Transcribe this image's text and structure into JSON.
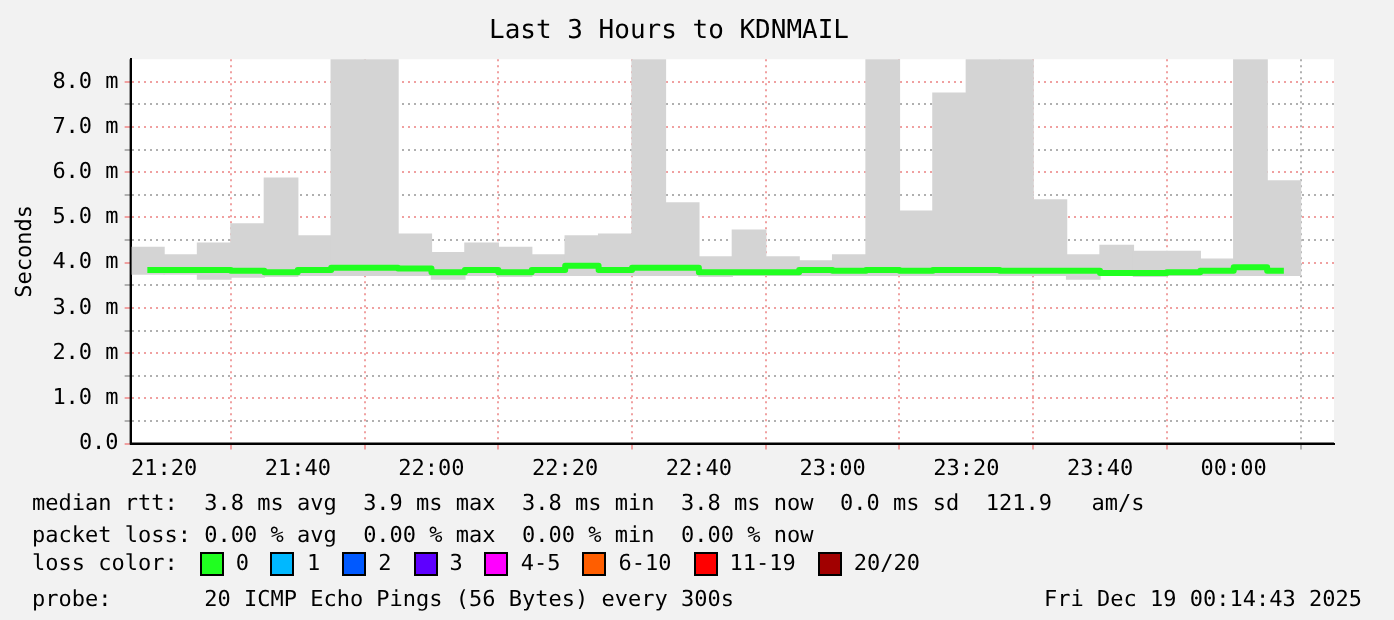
{
  "chart_data": {
    "type": "bar",
    "title": "Last 3 Hours to KDNMAIL",
    "ylabel": "Seconds",
    "legend_title": "loss color:",
    "legend": "bottom",
    "grid": true,
    "marker": "none",
    "x": [
      21.2917,
      21.375,
      21.4583,
      21.5417,
      21.625,
      21.7083,
      21.7917,
      21.875,
      21.9583,
      22.0417,
      22.125,
      22.2083,
      22.2917,
      22.375,
      22.4583,
      22.5417,
      22.625,
      22.7083,
      22.7917,
      22.875,
      22.9583,
      23.0417,
      23.125,
      23.2083,
      23.2917,
      23.375,
      23.4583,
      23.5417,
      23.625,
      23.7083,
      23.7917,
      23.875,
      23.9583,
      24.0417,
      24.125
    ],
    "xlim": [
      21.25,
      24.25
    ],
    "xticks": [
      {
        "value": 21.3333,
        "label": "21:20"
      },
      {
        "value": 21.6667,
        "label": "21:40"
      },
      {
        "value": 22,
        "label": "22:00"
      },
      {
        "value": 22.3333,
        "label": "22:20"
      },
      {
        "value": 22.6667,
        "label": "22:40"
      },
      {
        "value": 23,
        "label": "23:00"
      },
      {
        "value": 23.3333,
        "label": "23:20"
      },
      {
        "value": 23.6667,
        "label": "23:40"
      },
      {
        "value": 24,
        "label": "00:00"
      }
    ],
    "ylim": [
      0,
      8.5
    ],
    "yticks": [
      {
        "value": 0,
        "label": "0.0"
      },
      {
        "value": 0.5,
        "label": null
      },
      {
        "value": 1,
        "label": "1.0 m"
      },
      {
        "value": 1.5,
        "label": null
      },
      {
        "value": 2,
        "label": "2.0 m"
      },
      {
        "value": 2.5,
        "label": null
      },
      {
        "value": 3,
        "label": "3.0 m"
      },
      {
        "value": 3.5,
        "label": null
      },
      {
        "value": 4,
        "label": "4.0 m"
      },
      {
        "value": 4.5,
        "label": null
      },
      {
        "value": 5,
        "label": "5.0 m"
      },
      {
        "value": 5.5,
        "label": null
      },
      {
        "value": 6,
        "label": "6.0 m"
      },
      {
        "value": 6.5,
        "label": null
      },
      {
        "value": 7,
        "label": "7.0 m"
      },
      {
        "value": 7.5,
        "label": null
      },
      {
        "value": 8,
        "label": "8.0 m"
      }
    ],
    "series": [
      {
        "color": "#d4d4d4",
        "base": [
          3.75,
          3.75,
          3.64,
          3.68,
          3.7,
          3.72,
          3.72,
          3.72,
          3.72,
          3.64,
          3.72,
          3.7,
          3.72,
          3.72,
          3.72,
          3.72,
          3.72,
          3.7,
          3.72,
          3.72,
          3.72,
          3.72,
          3.72,
          3.72,
          3.72,
          3.72,
          3.72,
          3.72,
          3.64,
          3.72,
          3.7,
          3.72,
          3.72,
          3.72,
          3.72
        ],
        "values": [
          0.59,
          0.42,
          0.79,
          1.18,
          2.17,
          0.87,
          4.77,
          4.77,
          0.91,
          0.58,
          0.71,
          0.64,
          0.45,
          0.87,
          0.91,
          4.77,
          1.6,
          0.43,
          1.0,
          0.41,
          0.32,
          0.45,
          4.77,
          1.42,
          4.03,
          4.77,
          4.77,
          1.67,
          0.53,
          0.66,
          0.55,
          0.53,
          0.36,
          4.77,
          2.09
        ]
      },
      {
        "type": "step",
        "name": "0",
        "color": "#20ff20",
        "values": [
          3.84,
          3.84,
          3.84,
          3.82,
          3.79,
          3.84,
          3.89,
          3.89,
          3.87,
          3.79,
          3.84,
          3.79,
          3.84,
          3.93,
          3.84,
          3.89,
          3.89,
          3.79,
          3.79,
          3.79,
          3.84,
          3.82,
          3.84,
          3.82,
          3.84,
          3.84,
          3.82,
          3.82,
          3.82,
          3.77,
          3.77,
          3.79,
          3.82,
          3.9,
          3.82
        ]
      },
      {
        "type": "step",
        "name": "1",
        "color": "#00b8ff",
        "values": [
          null,
          null,
          null,
          null,
          null,
          null,
          null,
          null,
          null,
          null,
          null,
          null,
          null,
          null,
          null,
          null,
          null,
          null,
          null,
          null,
          null,
          null,
          null,
          null,
          null,
          null,
          null,
          null,
          null,
          null,
          null,
          null,
          null,
          null,
          null
        ]
      },
      {
        "type": "step",
        "name": "2",
        "color": "#0059ff",
        "values": [
          null,
          null,
          null,
          null,
          null,
          null,
          null,
          null,
          null,
          null,
          null,
          null,
          null,
          null,
          null,
          null,
          null,
          null,
          null,
          null,
          null,
          null,
          null,
          null,
          null,
          null,
          null,
          null,
          null,
          null,
          null,
          null,
          null,
          null,
          null
        ]
      },
      {
        "type": "step",
        "name": "3",
        "color": "#5e00ff",
        "values": [
          null,
          null,
          null,
          null,
          null,
          null,
          null,
          null,
          null,
          null,
          null,
          null,
          null,
          null,
          null,
          null,
          null,
          null,
          null,
          null,
          null,
          null,
          null,
          null,
          null,
          null,
          null,
          null,
          null,
          null,
          null,
          null,
          null,
          null,
          null
        ]
      },
      {
        "type": "step",
        "name": "4-5",
        "color": "#ff00ff",
        "values": [
          null,
          null,
          null,
          null,
          null,
          null,
          null,
          null,
          null,
          null,
          null,
          null,
          null,
          null,
          null,
          null,
          null,
          null,
          null,
          null,
          null,
          null,
          null,
          null,
          null,
          null,
          null,
          null,
          null,
          null,
          null,
          null,
          null,
          null,
          null
        ]
      },
      {
        "type": "step",
        "name": "6-10",
        "color": "#ff5e00",
        "values": [
          null,
          null,
          null,
          null,
          null,
          null,
          null,
          null,
          null,
          null,
          null,
          null,
          null,
          null,
          null,
          null,
          null,
          null,
          null,
          null,
          null,
          null,
          null,
          null,
          null,
          null,
          null,
          null,
          null,
          null,
          null,
          null,
          null,
          null,
          null
        ]
      },
      {
        "type": "step",
        "name": "11-19",
        "color": "#ff0000",
        "values": [
          null,
          null,
          null,
          null,
          null,
          null,
          null,
          null,
          null,
          null,
          null,
          null,
          null,
          null,
          null,
          null,
          null,
          null,
          null,
          null,
          null,
          null,
          null,
          null,
          null,
          null,
          null,
          null,
          null,
          null,
          null,
          null,
          null,
          null,
          null
        ]
      },
      {
        "type": "step",
        "name": "20/20",
        "color": "#a10000",
        "values": [
          null,
          null,
          null,
          null,
          null,
          null,
          null,
          null,
          null,
          null,
          null,
          null,
          null,
          null,
          null,
          null,
          null,
          null,
          null,
          null,
          null,
          null,
          null,
          null,
          null,
          null,
          null,
          null,
          null,
          null,
          null,
          null,
          null,
          null,
          null
        ]
      }
    ],
    "annotations": [
      "median rtt:  3.8 ms avg  3.9 ms max  3.8 ms min  3.8 ms now  0.0 ms sd  121.9   am/s",
      "packet loss: 0.00 % avg  0.00 % max  0.00 % min  0.00 % now",
      "probe:       20 ICMP Echo Pings (56 Bytes) every 300s",
      "Fri Dec 19 00:14:43 2025"
    ]
  }
}
